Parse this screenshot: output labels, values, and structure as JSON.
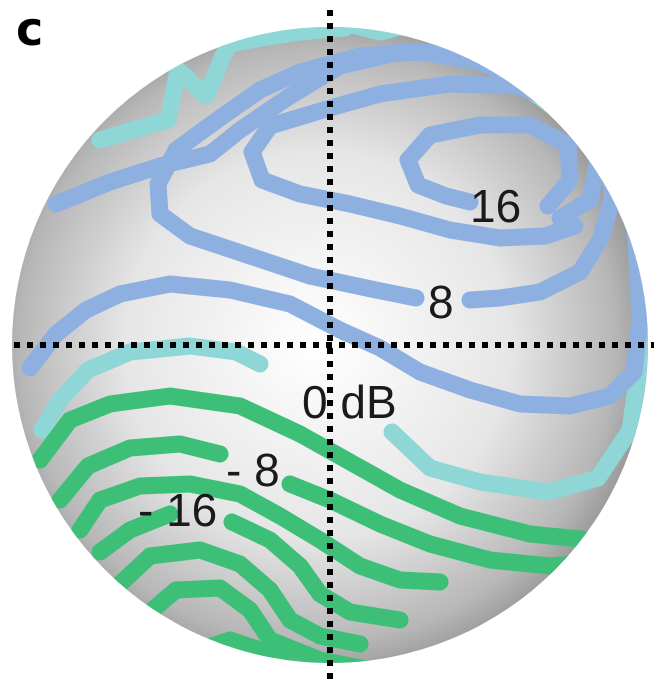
{
  "panel_label": "c",
  "contour_labels": {
    "plus16": "16",
    "plus8": "8",
    "zero": "0 dB",
    "minus8": "- 8",
    "minus16": "- 16"
  },
  "colors": {
    "positive_contours": "#8eb0e0",
    "zero_contours": "#8fd6d6",
    "negative_contours": "#3dbf78",
    "sphere_center": "#ffffff",
    "sphere_edge": "#7d7d7d",
    "crosshair": "#000000"
  }
}
